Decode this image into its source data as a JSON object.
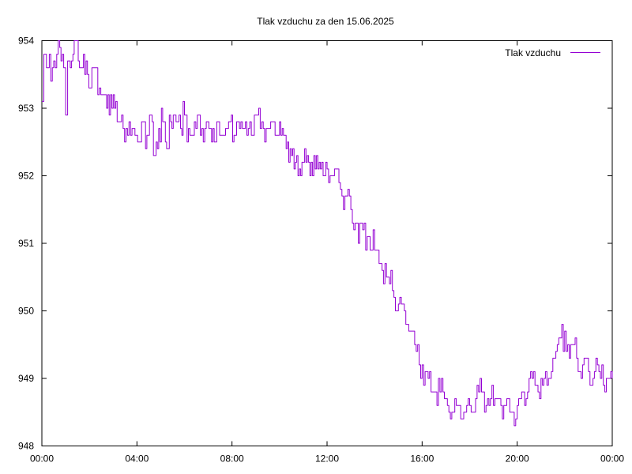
{
  "chart_data": {
    "type": "line",
    "title": "Tlak vzduchu za den 15.06.2025",
    "xlabel": "",
    "ylabel": "",
    "xlim": [
      "00:00",
      "24:00"
    ],
    "ylim": [
      948,
      954
    ],
    "x_tick_labels": [
      "00:00",
      "04:00",
      "08:00",
      "12:00",
      "16:00",
      "20:00",
      "00:00"
    ],
    "y_tick_labels": [
      "948",
      "949",
      "950",
      "951",
      "952",
      "953",
      "954"
    ],
    "grid": false,
    "legend_position": "top-right",
    "series": [
      {
        "name": "Tlak vzduchu",
        "color": "#9400d3",
        "points": [
          [
            "00:00",
            953.1
          ],
          [
            "00:05",
            953.8
          ],
          [
            "00:15",
            953.6
          ],
          [
            "00:30",
            953.7
          ],
          [
            "00:45",
            953.9
          ],
          [
            "00:55",
            953.6
          ],
          [
            "01:00",
            952.9
          ],
          [
            "01:05",
            953.7
          ],
          [
            "01:15",
            953.7
          ],
          [
            "01:25",
            954.0
          ],
          [
            "01:35",
            953.6
          ],
          [
            "01:45",
            953.8
          ],
          [
            "01:55",
            953.5
          ],
          [
            "02:10",
            953.6
          ],
          [
            "02:25",
            953.3
          ],
          [
            "02:40",
            953.2
          ],
          [
            "02:50",
            952.9
          ],
          [
            "03:00",
            953.2
          ],
          [
            "03:10",
            952.8
          ],
          [
            "03:25",
            952.7
          ],
          [
            "03:40",
            952.8
          ],
          [
            "03:55",
            952.6
          ],
          [
            "04:05",
            952.5
          ],
          [
            "04:15",
            952.8
          ],
          [
            "04:25",
            952.6
          ],
          [
            "04:35",
            952.9
          ],
          [
            "04:45",
            952.3
          ],
          [
            "04:55",
            952.7
          ],
          [
            "05:05",
            952.8
          ],
          [
            "05:15",
            952.4
          ],
          [
            "05:25",
            952.8
          ],
          [
            "05:35",
            952.9
          ],
          [
            "05:50",
            952.7
          ],
          [
            "06:00",
            952.9
          ],
          [
            "06:10",
            952.7
          ],
          [
            "06:25",
            952.8
          ],
          [
            "06:40",
            952.6
          ],
          [
            "06:55",
            952.8
          ],
          [
            "07:05",
            952.7
          ],
          [
            "07:15",
            952.5
          ],
          [
            "07:25",
            952.8
          ],
          [
            "07:40",
            952.6
          ],
          [
            "07:55",
            952.8
          ],
          [
            "08:05",
            952.6
          ],
          [
            "08:15",
            952.8
          ],
          [
            "08:30",
            952.7
          ],
          [
            "08:45",
            952.8
          ],
          [
            "09:00",
            952.9
          ],
          [
            "09:15",
            952.8
          ],
          [
            "09:30",
            952.7
          ],
          [
            "09:45",
            952.8
          ],
          [
            "10:00",
            952.8
          ],
          [
            "10:10",
            952.6
          ],
          [
            "10:20",
            952.5
          ],
          [
            "10:30",
            952.3
          ],
          [
            "10:40",
            952.2
          ],
          [
            "10:50",
            952.1
          ],
          [
            "11:00",
            952.2
          ],
          [
            "11:10",
            952.3
          ],
          [
            "11:20",
            952.2
          ],
          [
            "11:30",
            952.1
          ],
          [
            "11:40",
            952.2
          ],
          [
            "11:50",
            952.0
          ],
          [
            "12:00",
            952.1
          ],
          [
            "12:15",
            952.0
          ],
          [
            "12:30",
            951.9
          ],
          [
            "12:45",
            951.7
          ],
          [
            "13:00",
            951.5
          ],
          [
            "13:15",
            951.3
          ],
          [
            "13:30",
            951.2
          ],
          [
            "13:45",
            951.1
          ],
          [
            "14:00",
            950.9
          ],
          [
            "14:15",
            950.7
          ],
          [
            "14:30",
            950.5
          ],
          [
            "14:45",
            950.3
          ],
          [
            "15:00",
            950.1
          ],
          [
            "15:15",
            950.0
          ],
          [
            "15:30",
            949.7
          ],
          [
            "15:45",
            949.4
          ],
          [
            "16:00",
            949.2
          ],
          [
            "16:15",
            949.0
          ],
          [
            "16:30",
            948.8
          ],
          [
            "16:45",
            948.8
          ],
          [
            "17:00",
            948.7
          ],
          [
            "17:15",
            948.5
          ],
          [
            "17:30",
            948.6
          ],
          [
            "17:45",
            948.5
          ],
          [
            "18:00",
            948.6
          ],
          [
            "18:15",
            948.7
          ],
          [
            "18:30",
            948.8
          ],
          [
            "18:45",
            948.7
          ],
          [
            "19:00",
            948.6
          ],
          [
            "19:15",
            948.7
          ],
          [
            "19:30",
            948.6
          ],
          [
            "19:45",
            948.5
          ],
          [
            "20:00",
            948.6
          ],
          [
            "20:15",
            948.8
          ],
          [
            "20:30",
            949.0
          ],
          [
            "20:45",
            948.9
          ],
          [
            "21:00",
            949.0
          ],
          [
            "21:15",
            948.9
          ],
          [
            "21:30",
            949.3
          ],
          [
            "21:45",
            949.6
          ],
          [
            "22:00",
            949.7
          ],
          [
            "22:15",
            949.5
          ],
          [
            "22:30",
            949.3
          ],
          [
            "22:45",
            949.2
          ],
          [
            "23:00",
            949.1
          ],
          [
            "23:15",
            949.1
          ],
          [
            "23:30",
            949.0
          ],
          [
            "23:45",
            949.0
          ],
          [
            "24:00",
            949.0
          ]
        ]
      }
    ]
  }
}
